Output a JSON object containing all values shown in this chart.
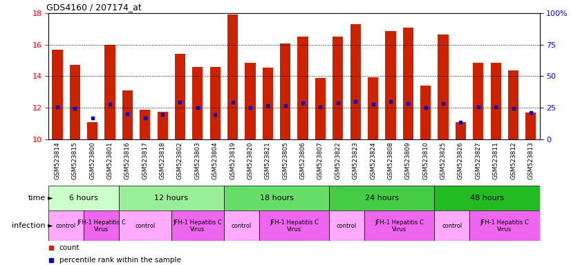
{
  "title": "GDS4160 / 207174_at",
  "samples": [
    "GSM523814",
    "GSM523815",
    "GSM523800",
    "GSM523801",
    "GSM523816",
    "GSM523817",
    "GSM523818",
    "GSM523802",
    "GSM523803",
    "GSM523804",
    "GSM523819",
    "GSM523820",
    "GSM523821",
    "GSM523805",
    "GSM523806",
    "GSM523807",
    "GSM523822",
    "GSM523823",
    "GSM523824",
    "GSM523808",
    "GSM523809",
    "GSM523810",
    "GSM523825",
    "GSM523826",
    "GSM523827",
    "GSM523811",
    "GSM523812",
    "GSM523813"
  ],
  "counts": [
    15.7,
    14.7,
    11.1,
    16.0,
    13.1,
    11.85,
    11.75,
    15.4,
    14.6,
    14.6,
    17.9,
    14.85,
    14.55,
    16.1,
    16.5,
    13.9,
    16.5,
    17.3,
    13.95,
    16.85,
    17.1,
    13.4,
    16.65,
    11.1,
    14.85,
    14.85,
    14.35,
    11.7
  ],
  "percentiles": [
    12.05,
    11.95,
    11.35,
    12.2,
    11.6,
    11.35,
    11.55,
    12.35,
    12.0,
    11.55,
    12.35,
    12.0,
    12.15,
    12.15,
    12.3,
    12.05,
    12.3,
    12.4,
    12.2,
    12.4,
    12.25,
    12.0,
    12.25,
    11.1,
    12.05,
    12.05,
    11.95,
    11.7
  ],
  "time_groups": [
    {
      "label": "6 hours",
      "start": 0,
      "end": 4,
      "color": "#ccffcc"
    },
    {
      "label": "12 hours",
      "start": 4,
      "end": 10,
      "color": "#99ee99"
    },
    {
      "label": "18 hours",
      "start": 10,
      "end": 16,
      "color": "#66dd66"
    },
    {
      "label": "24 hours",
      "start": 16,
      "end": 22,
      "color": "#44cc44"
    },
    {
      "label": "48 hours",
      "start": 22,
      "end": 28,
      "color": "#00bb00"
    }
  ],
  "infection_groups": [
    {
      "label": "control",
      "start": 0,
      "end": 2,
      "color": "#ffaaff"
    },
    {
      "label": "JFH-1 Hepatitis C\nVirus",
      "start": 2,
      "end": 4,
      "color": "#ee66ee"
    },
    {
      "label": "control",
      "start": 4,
      "end": 7,
      "color": "#ffaaff"
    },
    {
      "label": "JFH-1 Hepatitis C\nVirus",
      "start": 7,
      "end": 10,
      "color": "#ee66ee"
    },
    {
      "label": "control",
      "start": 10,
      "end": 12,
      "color": "#ffaaff"
    },
    {
      "label": "JFH-1 Hepatitis C\nVirus",
      "start": 12,
      "end": 16,
      "color": "#ee66ee"
    },
    {
      "label": "control",
      "start": 16,
      "end": 18,
      "color": "#ffaaff"
    },
    {
      "label": "JFH-1 Hepatitis C\nVirus",
      "start": 18,
      "end": 22,
      "color": "#ee66ee"
    },
    {
      "label": "control",
      "start": 22,
      "end": 24,
      "color": "#ffaaff"
    },
    {
      "label": "JFH-1 Hepatitis C\nVirus",
      "start": 24,
      "end": 28,
      "color": "#ee66ee"
    }
  ],
  "bar_color": "#cc2200",
  "percentile_color": "#0000cc",
  "ylim_left": [
    10,
    18
  ],
  "ylim_right": [
    0,
    100
  ],
  "yticks_left": [
    10,
    12,
    14,
    16,
    18
  ],
  "yticks_right": [
    0,
    25,
    50,
    75,
    100
  ],
  "background_color": "#ffffff"
}
